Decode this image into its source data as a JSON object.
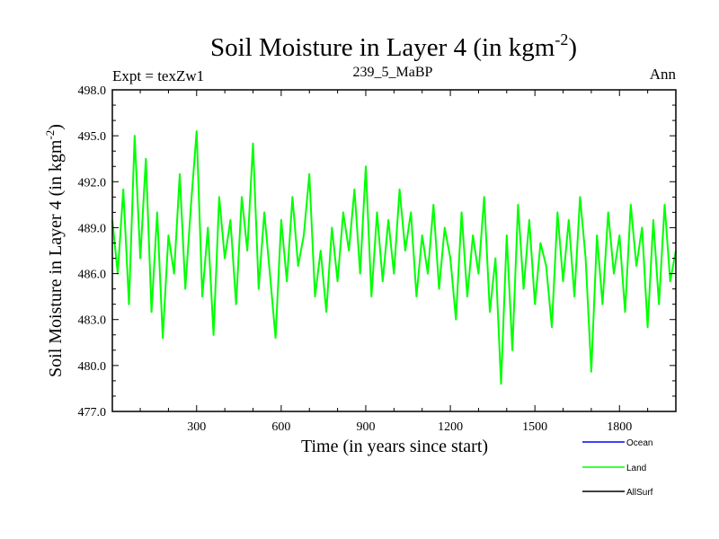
{
  "chart_data": {
    "type": "line",
    "title": "Soil Moisture in Layer 4 (in kgm",
    "title_sup": "-2",
    "title_close": ")",
    "subtitle_left": "Expt = texZw1",
    "subtitle_center": "239_5_MaBP",
    "subtitle_right": "Ann",
    "xlabel": "Time (in years since start)",
    "ylabel": "Soil Moisture in Layer 4 (in kgm",
    "ylabel_sup": "-2",
    "ylabel_close": ")",
    "xlim": [
      1,
      2000
    ],
    "ylim": [
      477.0,
      498.0
    ],
    "xticks": [
      300,
      600,
      900,
      1200,
      1500,
      1800
    ],
    "xtick_labels": [
      "300",
      "600",
      "900",
      "1200",
      "1500",
      "1800"
    ],
    "yticks": [
      477.0,
      480.0,
      483.0,
      486.0,
      489.0,
      492.0,
      495.0,
      498.0
    ],
    "ytick_labels": [
      "477.0",
      "480.0",
      "483.0",
      "486.0",
      "489.0",
      "492.0",
      "495.0",
      "498.0"
    ],
    "series": [
      {
        "name": "Land",
        "color": "#00ff00",
        "x": [
          1,
          20,
          40,
          60,
          80,
          100,
          120,
          140,
          160,
          180,
          200,
          220,
          240,
          260,
          280,
          300,
          320,
          340,
          360,
          380,
          400,
          420,
          440,
          460,
          480,
          500,
          520,
          540,
          560,
          580,
          600,
          620,
          640,
          660,
          680,
          700,
          720,
          740,
          760,
          780,
          800,
          820,
          840,
          860,
          880,
          900,
          920,
          940,
          960,
          980,
          1000,
          1020,
          1040,
          1060,
          1080,
          1100,
          1120,
          1140,
          1160,
          1180,
          1200,
          1220,
          1240,
          1260,
          1280,
          1300,
          1320,
          1340,
          1360,
          1380,
          1400,
          1420,
          1440,
          1460,
          1480,
          1500,
          1520,
          1540,
          1560,
          1580,
          1600,
          1620,
          1640,
          1660,
          1680,
          1700,
          1720,
          1740,
          1760,
          1780,
          1800,
          1820,
          1840,
          1860,
          1880,
          1900,
          1920,
          1940,
          1960,
          1980,
          2000
        ],
        "values": [
          489.5,
          486.0,
          491.5,
          484.0,
          495.0,
          487.0,
          493.5,
          483.5,
          490.0,
          481.8,
          488.5,
          486.0,
          492.5,
          485.0,
          490.5,
          495.3,
          484.5,
          489.0,
          482.0,
          491.0,
          487.0,
          489.5,
          484.0,
          491.0,
          487.5,
          494.5,
          485.0,
          490.0,
          486.0,
          481.8,
          489.5,
          485.5,
          491.0,
          486.5,
          488.5,
          492.5,
          484.5,
          487.5,
          483.5,
          489.0,
          485.5,
          490.0,
          487.5,
          491.5,
          486.0,
          493.0,
          484.5,
          490.0,
          485.5,
          489.5,
          486.0,
          491.5,
          487.5,
          490.0,
          484.5,
          488.5,
          486.0,
          490.5,
          485.0,
          489.0,
          487.0,
          483.0,
          490.0,
          484.5,
          488.5,
          486.0,
          491.0,
          483.5,
          487.0,
          478.8,
          488.5,
          481.0,
          490.5,
          485.0,
          489.5,
          484.0,
          488.0,
          486.5,
          482.5,
          490.0,
          485.5,
          489.5,
          484.5,
          491.0,
          487.0,
          479.6,
          488.5,
          484.0,
          490.0,
          486.0,
          488.5,
          483.5,
          490.5,
          486.5,
          489.0,
          482.5,
          489.5,
          484.0,
          490.5,
          485.5,
          487.5
        ]
      }
    ],
    "legend": [
      {
        "name": "Ocean",
        "color": "#0000ff"
      },
      {
        "name": "Land",
        "color": "#00ff00"
      },
      {
        "name": "AllSurf",
        "color": "#000000"
      }
    ]
  }
}
